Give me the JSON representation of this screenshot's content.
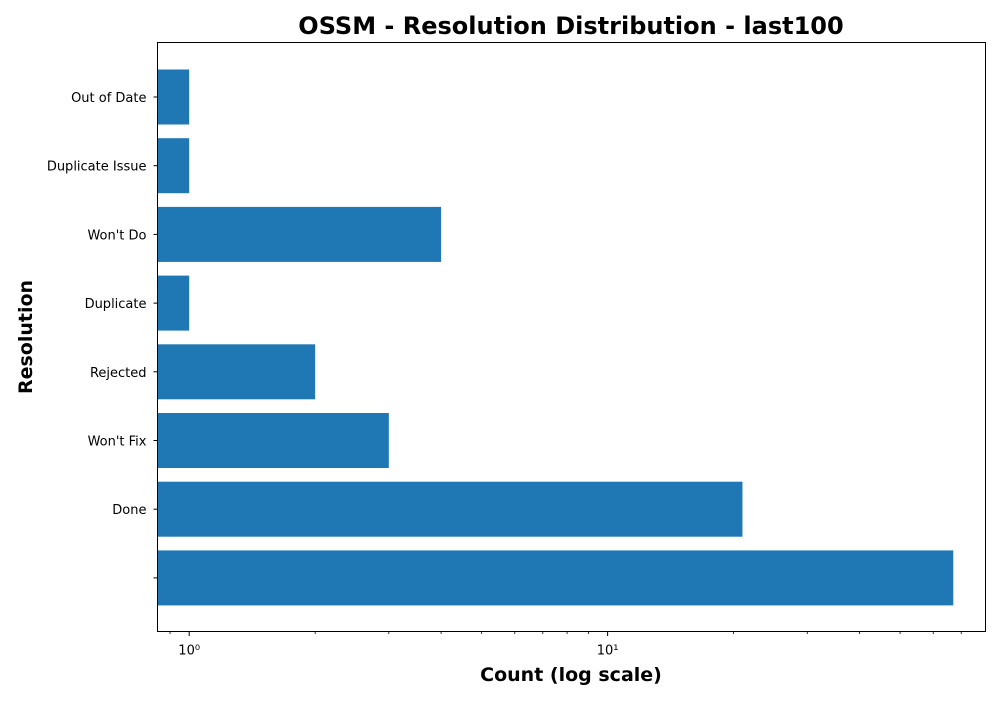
{
  "chart_data": {
    "type": "bar",
    "orientation": "horizontal",
    "title": "OSSM - Resolution Distribution - last100",
    "xlabel": "Count (log scale)",
    "ylabel": "Resolution",
    "x_scale": "log",
    "xlim": [
      0.84,
      80
    ],
    "x_ticks": [
      {
        "value": 1,
        "label": "10⁰"
      },
      {
        "value": 10,
        "label": "10¹"
      }
    ],
    "categories": [
      "Out of Date",
      "Duplicate Issue",
      "Won't Do",
      "Duplicate",
      "Rejected",
      "Won't Fix",
      "Done",
      ""
    ],
    "values": [
      1,
      1,
      4,
      1,
      2,
      3,
      21,
      67
    ],
    "bar_color": "#1f77b4",
    "grid": false,
    "legend": false
  }
}
